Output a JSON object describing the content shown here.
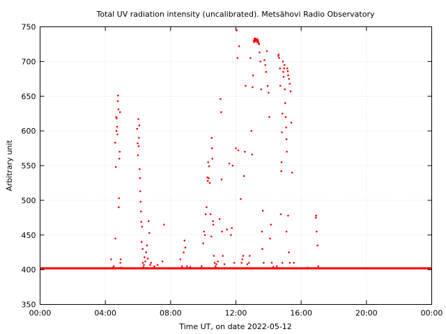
{
  "chart_data": {
    "type": "scatter",
    "title": "Total UV radiation intensity (uncalibrated). Metsähovi Radio Observatory",
    "xlabel": "Time UT, on date 2022-05-12",
    "ylabel": "Arbitrary unit",
    "xlim": [
      0,
      24
    ],
    "ylim": [
      350,
      750
    ],
    "x_ticks": [
      {
        "value": 0,
        "label": "00:00"
      },
      {
        "value": 4,
        "label": "04:00"
      },
      {
        "value": 8,
        "label": "08:00"
      },
      {
        "value": 12,
        "label": "12:00"
      },
      {
        "value": 16,
        "label": "16:00"
      },
      {
        "value": 20,
        "label": "20:00"
      },
      {
        "value": 24,
        "label": "00:00"
      }
    ],
    "y_ticks": [
      350,
      400,
      450,
      500,
      550,
      600,
      650,
      700,
      750
    ],
    "grid": true,
    "color": "#ff0000",
    "baseline": {
      "value": 402,
      "x_range": [
        0,
        24
      ]
    },
    "x_unit": "hours UT",
    "points": [
      [
        4.35,
        415
      ],
      [
        4.45,
        403
      ],
      [
        4.52,
        405
      ],
      [
        4.6,
        583
      ],
      [
        4.62,
        445
      ],
      [
        4.64,
        548
      ],
      [
        4.66,
        620
      ],
      [
        4.68,
        600
      ],
      [
        4.7,
        618
      ],
      [
        4.72,
        606
      ],
      [
        4.74,
        595
      ],
      [
        4.76,
        643
      ],
      [
        4.78,
        651
      ],
      [
        4.8,
        631
      ],
      [
        4.82,
        490
      ],
      [
        4.84,
        503
      ],
      [
        4.86,
        560
      ],
      [
        4.88,
        570
      ],
      [
        4.9,
        627
      ],
      [
        4.92,
        410
      ],
      [
        4.94,
        415
      ],
      [
        4.98,
        403
      ],
      [
        5.95,
        603
      ],
      [
        5.98,
        582
      ],
      [
        6.0,
        565
      ],
      [
        6.02,
        617
      ],
      [
        6.04,
        578
      ],
      [
        6.06,
        590
      ],
      [
        6.08,
        608
      ],
      [
        6.1,
        545
      ],
      [
        6.12,
        532
      ],
      [
        6.14,
        513
      ],
      [
        6.16,
        498
      ],
      [
        6.18,
        484
      ],
      [
        6.2,
        469
      ],
      [
        6.22,
        440
      ],
      [
        6.25,
        462
      ],
      [
        6.28,
        430
      ],
      [
        6.3,
        410
      ],
      [
        6.33,
        404
      ],
      [
        6.36,
        407
      ],
      [
        6.4,
        418
      ],
      [
        6.45,
        412
      ],
      [
        6.5,
        425
      ],
      [
        6.55,
        435
      ],
      [
        6.6,
        416
      ],
      [
        6.65,
        470
      ],
      [
        6.7,
        453
      ],
      [
        6.75,
        407
      ],
      [
        6.8,
        410
      ],
      [
        7.0,
        405
      ],
      [
        7.2,
        407
      ],
      [
        7.5,
        412
      ],
      [
        7.6,
        465
      ],
      [
        8.6,
        415
      ],
      [
        8.7,
        405
      ],
      [
        8.8,
        425
      ],
      [
        8.85,
        442
      ],
      [
        8.9,
        432
      ],
      [
        9.0,
        405
      ],
      [
        9.2,
        404
      ],
      [
        9.8,
        402
      ],
      [
        9.9,
        405
      ],
      [
        10.0,
        438
      ],
      [
        10.05,
        455
      ],
      [
        10.1,
        450
      ],
      [
        10.15,
        480
      ],
      [
        10.2,
        490
      ],
      [
        10.25,
        533
      ],
      [
        10.28,
        528
      ],
      [
        10.3,
        555
      ],
      [
        10.33,
        532
      ],
      [
        10.36,
        549
      ],
      [
        10.4,
        525
      ],
      [
        10.45,
        480
      ],
      [
        10.5,
        448
      ],
      [
        10.52,
        590
      ],
      [
        10.54,
        575
      ],
      [
        10.56,
        560
      ],
      [
        10.6,
        470
      ],
      [
        10.62,
        465
      ],
      [
        10.65,
        420
      ],
      [
        10.7,
        410
      ],
      [
        10.75,
        405
      ],
      [
        10.8,
        408
      ],
      [
        10.9,
        412
      ],
      [
        11.0,
        473
      ],
      [
        11.05,
        646
      ],
      [
        11.1,
        627
      ],
      [
        11.12,
        530
      ],
      [
        11.15,
        455
      ],
      [
        11.2,
        420
      ],
      [
        11.3,
        408
      ],
      [
        11.45,
        458
      ],
      [
        11.6,
        553
      ],
      [
        11.7,
        450
      ],
      [
        11.75,
        460
      ],
      [
        11.8,
        550
      ],
      [
        11.9,
        410
      ],
      [
        12.0,
        575
      ],
      [
        12.05,
        745
      ],
      [
        12.1,
        705
      ],
      [
        12.15,
        572
      ],
      [
        12.2,
        722
      ],
      [
        12.3,
        502
      ],
      [
        12.35,
        410
      ],
      [
        12.4,
        415
      ],
      [
        12.45,
        420
      ],
      [
        12.5,
        535
      ],
      [
        12.55,
        570
      ],
      [
        12.6,
        665
      ],
      [
        12.7,
        408
      ],
      [
        12.8,
        410
      ],
      [
        12.85,
        420
      ],
      [
        12.9,
        705
      ],
      [
        12.95,
        600
      ],
      [
        13.0,
        566
      ],
      [
        13.02,
        663
      ],
      [
        13.05,
        680
      ],
      [
        13.1,
        730
      ],
      [
        13.12,
        728
      ],
      [
        13.14,
        733
      ],
      [
        13.16,
        731
      ],
      [
        13.18,
        729
      ],
      [
        13.2,
        733
      ],
      [
        13.22,
        730
      ],
      [
        13.25,
        732
      ],
      [
        13.28,
        731
      ],
      [
        13.3,
        728
      ],
      [
        13.32,
        732
      ],
      [
        13.35,
        730
      ],
      [
        13.38,
        728
      ],
      [
        13.4,
        726
      ],
      [
        13.42,
        725
      ],
      [
        13.45,
        713
      ],
      [
        13.5,
        700
      ],
      [
        13.55,
        660
      ],
      [
        13.6,
        455
      ],
      [
        13.62,
        430
      ],
      [
        13.65,
        485
      ],
      [
        13.7,
        410
      ],
      [
        13.75,
        702
      ],
      [
        13.8,
        695
      ],
      [
        13.85,
        685
      ],
      [
        13.9,
        715
      ],
      [
        13.95,
        665
      ],
      [
        14.0,
        655
      ],
      [
        14.05,
        620
      ],
      [
        14.1,
        445
      ],
      [
        14.15,
        465
      ],
      [
        14.2,
        410
      ],
      [
        14.3,
        404
      ],
      [
        14.4,
        402
      ],
      [
        14.5,
        405
      ],
      [
        14.6,
        708
      ],
      [
        14.62,
        710
      ],
      [
        14.65,
        705
      ],
      [
        14.7,
        690
      ],
      [
        14.72,
        665
      ],
      [
        14.75,
        480
      ],
      [
        14.78,
        542
      ],
      [
        14.8,
        555
      ],
      [
        14.82,
        598
      ],
      [
        14.85,
        625
      ],
      [
        14.88,
        700
      ],
      [
        14.9,
        685
      ],
      [
        14.92,
        678
      ],
      [
        14.95,
        690
      ],
      [
        14.98,
        695
      ],
      [
        15.0,
        660
      ],
      [
        15.02,
        640
      ],
      [
        15.05,
        620
      ],
      [
        15.08,
        605
      ],
      [
        15.1,
        588
      ],
      [
        15.12,
        570
      ],
      [
        15.15,
        690
      ],
      [
        15.18,
        686
      ],
      [
        15.2,
        680
      ],
      [
        15.25,
        675
      ],
      [
        15.3,
        668
      ],
      [
        15.35,
        657
      ],
      [
        15.4,
        612
      ],
      [
        15.45,
        540
      ],
      [
        15.5,
        402
      ],
      [
        15.55,
        410
      ],
      [
        15.2,
        478
      ],
      [
        15.25,
        425
      ],
      [
        15.1,
        455
      ],
      [
        14.85,
        410
      ],
      [
        15.3,
        410
      ],
      [
        16.2,
        402
      ],
      [
        16.4,
        403
      ],
      [
        16.6,
        402
      ],
      [
        16.9,
        475
      ],
      [
        16.92,
        478
      ],
      [
        16.95,
        455
      ],
      [
        17.0,
        435
      ],
      [
        17.05,
        405
      ]
    ]
  }
}
